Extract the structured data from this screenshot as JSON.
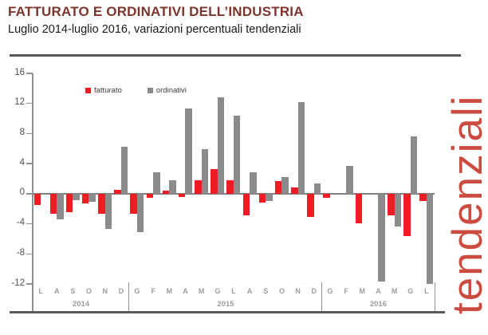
{
  "header": {
    "title": "FATTURATO E ORDINATIVI DELL’INDUSTRIA",
    "subtitle": "Luglio 2014-luglio 2016, variazioni percentuali tendenziali"
  },
  "sidebar_text": "tendenziali",
  "colors": {
    "title": "#7b352c",
    "fatturato": "#ee1d23",
    "ordinativi": "#8b8b8b",
    "axis": "#8f8f8f",
    "sidebar_text": "#cc4b40"
  },
  "chart_data": {
    "type": "bar",
    "title": "FATTURATO E ORDINATIVI DELL’INDUSTRIA",
    "subtitle": "Luglio 2014-luglio 2016, variazioni percentuali tendenziali",
    "xlabel": "",
    "ylabel": "",
    "ylim": [
      -12,
      16
    ],
    "yticks": [
      16,
      12,
      8,
      4,
      0,
      -4,
      -8,
      -12
    ],
    "grid": false,
    "legend_position": "top-left-inside",
    "legend": [
      {
        "label": "fatturato",
        "color": "#ee1d23"
      },
      {
        "label": "ordinativi",
        "color": "#8b8b8b"
      }
    ],
    "categories": [
      "L",
      "A",
      "S",
      "O",
      "N",
      "D",
      "G",
      "F",
      "M",
      "A",
      "M",
      "G",
      "L",
      "A",
      "S",
      "O",
      "N",
      "D",
      "G",
      "F",
      "M",
      "A",
      "M",
      "G",
      "L"
    ],
    "year_groups": [
      {
        "label": "2014",
        "start": 0,
        "end": 5
      },
      {
        "label": "2015",
        "start": 6,
        "end": 17
      },
      {
        "label": "2016",
        "start": 18,
        "end": 24
      }
    ],
    "series": [
      {
        "name": "fatturato",
        "values": [
          -1.5,
          -2.7,
          -2.5,
          -1.3,
          -2.7,
          0.5,
          -2.7,
          -0.5,
          0.4,
          -0.4,
          1.8,
          3.3,
          1.8,
          -2.9,
          -1.2,
          1.7,
          0.8,
          -3.1,
          -0.5,
          0,
          -3.9,
          0,
          -2.9,
          -5.6,
          -1.0
        ]
      },
      {
        "name": "ordinativi",
        "values": [
          0,
          -3.4,
          -0.9,
          -1.1,
          -4.7,
          6.2,
          -5.1,
          2.9,
          1.8,
          11.3,
          5.9,
          12.8,
          10.4,
          2.8,
          -1.0,
          2.2,
          12.2,
          1.4,
          0,
          3.7,
          0,
          -11.7,
          -4.4,
          7.6,
          -12.0
        ]
      }
    ]
  }
}
